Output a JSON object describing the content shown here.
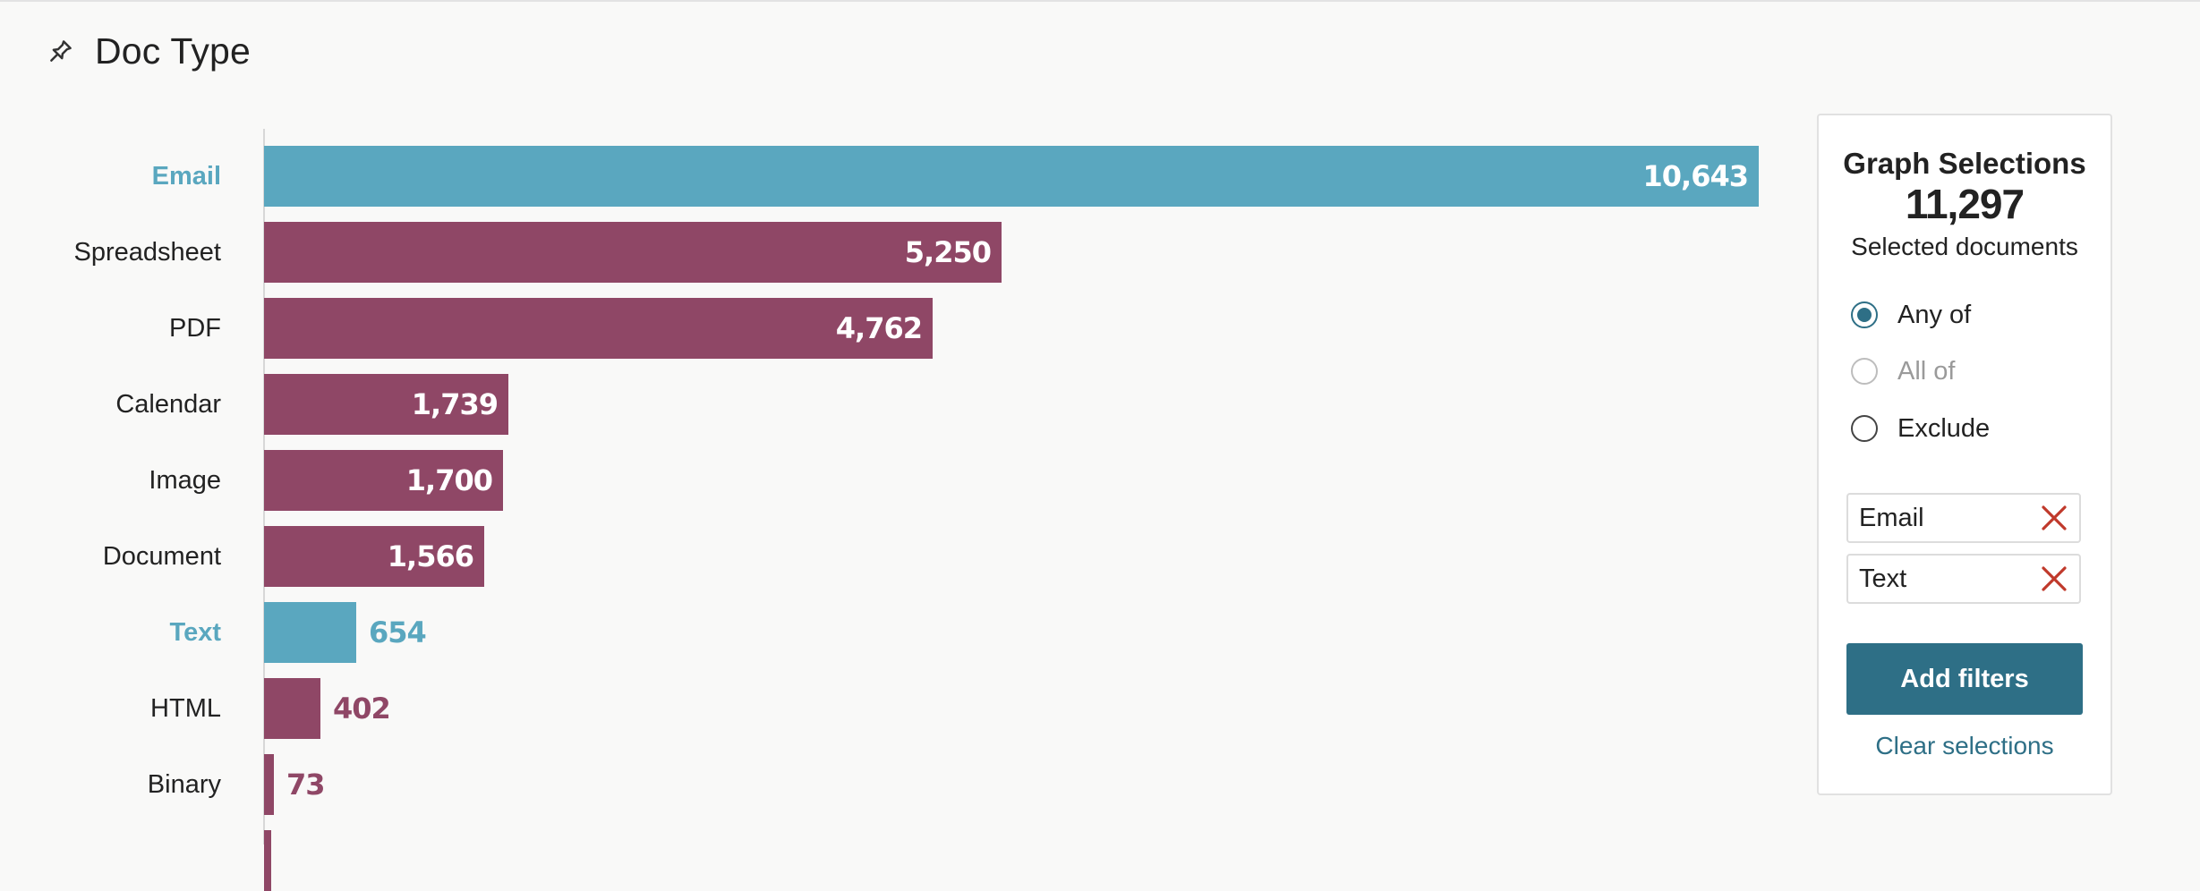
{
  "header": {
    "title": "Doc Type",
    "pin_icon": "pin-icon"
  },
  "colors": {
    "selected": "#5aa7bf",
    "unselected": "#8f4766",
    "accent": "#2e6f86",
    "remove": "#c0392b"
  },
  "chart_data": {
    "type": "bar",
    "orientation": "horizontal",
    "categories": [
      "Email",
      "Spreadsheet",
      "PDF",
      "Calendar",
      "Image",
      "Document",
      "Text",
      "HTML",
      "Binary"
    ],
    "values": [
      10643,
      5250,
      4762,
      1739,
      1700,
      1566,
      654,
      402,
      73
    ],
    "value_labels": [
      "10,643",
      "5,250",
      "4,762",
      "1,739",
      "1,700",
      "1,566",
      "654",
      "402",
      "73"
    ],
    "selected": [
      true,
      false,
      false,
      false,
      false,
      false,
      true,
      false,
      false
    ],
    "xlim": [
      0,
      10643
    ]
  },
  "panel": {
    "title": "Graph Selections",
    "count": "11,297",
    "subtitle": "Selected documents",
    "options": [
      {
        "label": "Any of",
        "state": "checked"
      },
      {
        "label": "All of",
        "state": "disabled"
      },
      {
        "label": "Exclude",
        "state": "unchecked"
      }
    ],
    "chips": [
      {
        "label": "Email"
      },
      {
        "label": "Text"
      }
    ],
    "add_button": "Add filters",
    "clear_link": "Clear selections"
  }
}
